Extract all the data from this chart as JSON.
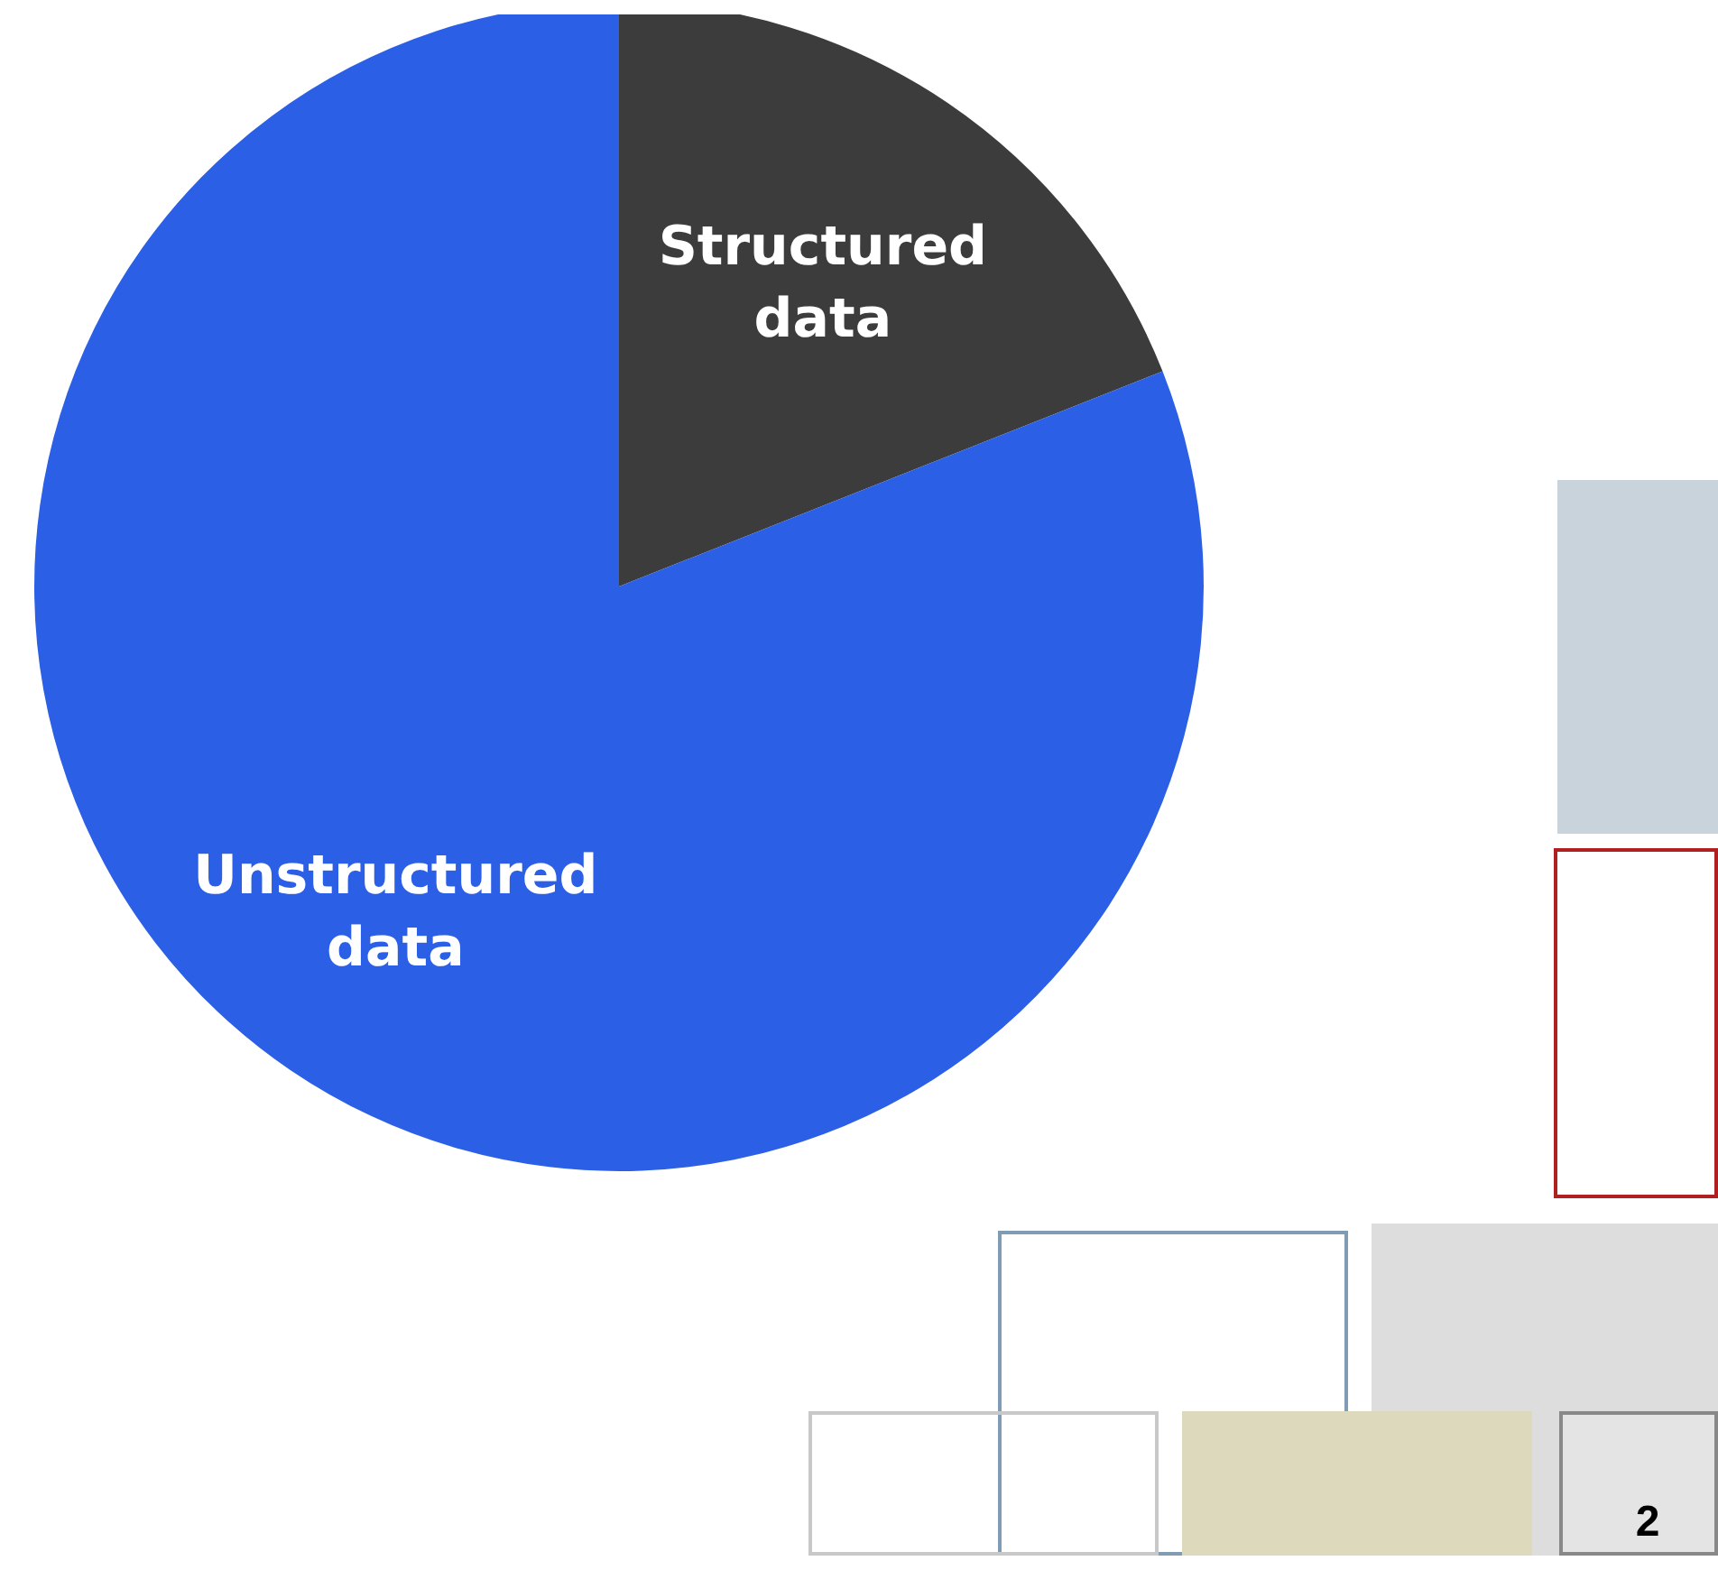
{
  "chart_data": {
    "type": "pie",
    "categories": [
      "Structured\ndata",
      "Unstructured\ndata"
    ],
    "values": [
      19,
      81
    ],
    "colors": [
      "#3c3c3c",
      "#2b5fe6"
    ],
    "legend": false,
    "annotations": [
      "2"
    ]
  }
}
